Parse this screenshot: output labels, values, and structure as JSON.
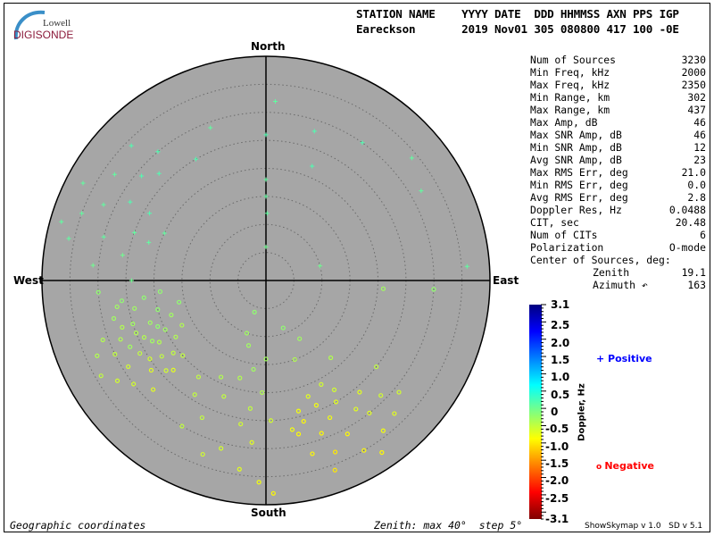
{
  "logo": {
    "line1": "Lowell",
    "line2": "DIGISONDE"
  },
  "header": {
    "row1": "STATION NAME    YYYY DATE  DDD HHMMSS AXN PPS IGP",
    "row2": "Eareckson       2019 Nov01 305 080800 417 100 -0E"
  },
  "stats": [
    {
      "label": "Num of Sources",
      "value": "3230"
    },
    {
      "label": "Min Freq, kHz",
      "value": "2000"
    },
    {
      "label": "Max Freq, kHz",
      "value": "2350"
    },
    {
      "label": "Min Range, km",
      "value": "302"
    },
    {
      "label": "Max Range, km",
      "value": "437"
    },
    {
      "label": "Max Amp, dB",
      "value": "46"
    },
    {
      "label": "Max SNR Amp, dB",
      "value": "46"
    },
    {
      "label": "Min SNR Amp, dB",
      "value": "12"
    },
    {
      "label": "Avg SNR Amp, dB",
      "value": "23"
    },
    {
      "label": "Max RMS Err, deg",
      "value": "21.0"
    },
    {
      "label": "Min RMS Err, deg",
      "value": "0.0"
    },
    {
      "label": "Avg RMS Err, deg",
      "value": "2.8"
    },
    {
      "label": "Doppler Res, Hz",
      "value": "0.0488"
    },
    {
      "label": "CIT, sec",
      "value": "20.48"
    },
    {
      "label": "Num of CITs",
      "value": "6"
    },
    {
      "label": "Polarization",
      "value": "O-mode"
    },
    {
      "label": "Center of Sources, deg:",
      "value": ""
    },
    {
      "label": "Zenith",
      "value": "19.1"
    },
    {
      "label": "Azimuth ↶",
      "value": "163"
    }
  ],
  "legend": {
    "positive": "Positive",
    "negative": "Negative",
    "positive_color": "#0000ff",
    "negative_color": "#ff0000"
  },
  "footer": {
    "left": "Geographic coordinates",
    "center": "Zenith: max 40°  step 5°",
    "right": "ShowSkymap v 1.0   SD v 5.1"
  },
  "chart_data": {
    "type": "scatter",
    "projection": "polar skymap (zenith angle radial, azimuth clockwise from North)",
    "directions": {
      "north": "North",
      "south": "South",
      "east": "East",
      "west": "West"
    },
    "zenith_max": 40,
    "zenith_step": 5,
    "background": "#a6a6a6",
    "colorbar": {
      "label": "Doppler, Hz",
      "range": [
        -3.1,
        3.1
      ],
      "colormap": "jet (positive blue, negative red)",
      "ticks": [
        "3.1",
        "2.5",
        "2.0",
        "1.5",
        "1.0",
        "0.5",
        "0",
        "-0.5",
        "-1.0",
        "-1.5",
        "-2.0",
        "-2.5",
        "-3.1"
      ]
    },
    "point_fields": [
      "zenith_deg",
      "azimuth_deg",
      "doppler_hz"
    ],
    "points": [
      [
        24,
        245,
        -0.3
      ],
      [
        22,
        250,
        -0.2
      ],
      [
        26,
        240,
        -0.4
      ],
      [
        20,
        255,
        -0.1
      ],
      [
        28,
        248,
        -0.3
      ],
      [
        25,
        236,
        -0.5
      ],
      [
        23,
        242,
        -0.2
      ],
      [
        27,
        252,
        -0.3
      ],
      [
        21,
        247,
        -0.1
      ],
      [
        30,
        244,
        -0.4
      ],
      [
        19,
        238,
        -0.3
      ],
      [
        24,
        258,
        -0.2
      ],
      [
        26,
        232,
        -0.6
      ],
      [
        22,
        262,
        -0.1
      ],
      [
        29,
        238,
        -0.5
      ],
      [
        18,
        250,
        -0.2
      ],
      [
        25,
        248,
        -0.3
      ],
      [
        23,
        234,
        -0.4
      ],
      [
        27,
        244,
        -0.2
      ],
      [
        31,
        250,
        -0.3
      ],
      [
        20,
        244,
        -0.2
      ],
      [
        24,
        228,
        -0.5
      ],
      [
        28,
        256,
        -0.2
      ],
      [
        21,
        232,
        -0.4
      ],
      [
        33,
        246,
        -0.3
      ],
      [
        17,
        242,
        -0.3
      ],
      [
        26,
        262,
        -0.1
      ],
      [
        30,
        232,
        -0.5
      ],
      [
        22,
        240,
        -0.3
      ],
      [
        25,
        252,
        -0.2
      ],
      [
        16,
        256,
        -0.1
      ],
      [
        34,
        240,
        -0.4
      ],
      [
        19,
        264,
        -0.1
      ],
      [
        23,
        226,
        -0.6
      ],
      [
        28,
        226,
        -0.6
      ],
      [
        32,
        236,
        -0.5
      ],
      [
        20,
        228,
        -0.4
      ],
      [
        27,
        260,
        -0.2
      ],
      [
        24,
        270,
        0.1
      ],
      [
        30,
        266,
        -0.1
      ],
      [
        27,
        155,
        -0.7
      ],
      [
        25,
        150,
        -0.6
      ],
      [
        29,
        160,
        -0.8
      ],
      [
        24,
        158,
        -0.7
      ],
      [
        31,
        152,
        -0.8
      ],
      [
        28,
        145,
        -0.6
      ],
      [
        26,
        165,
        -0.8
      ],
      [
        33,
        158,
        -0.9
      ],
      [
        23,
        148,
        -0.5
      ],
      [
        30,
        142,
        -0.6
      ],
      [
        27,
        170,
        -0.7
      ],
      [
        35,
        150,
        -0.8
      ],
      [
        22,
        160,
        -0.6
      ],
      [
        32,
        165,
        -0.8
      ],
      [
        29,
        135,
        -0.5
      ],
      [
        26,
        140,
        -0.6
      ],
      [
        34,
        142,
        -0.7
      ],
      [
        21,
        152,
        -0.5
      ],
      [
        36,
        160,
        -0.9
      ],
      [
        25,
        128,
        -0.4
      ],
      [
        31,
        130,
        -0.5
      ],
      [
        28,
        168,
        -0.8
      ],
      [
        33,
        136,
        -0.6
      ],
      [
        24,
        166,
        -0.7
      ],
      [
        37,
        146,
        -0.8
      ],
      [
        23,
        187,
        -0.4
      ],
      [
        20,
        182,
        -0.3
      ],
      [
        26,
        190,
        -0.5
      ],
      [
        18,
        195,
        -0.3
      ],
      [
        29,
        185,
        -0.6
      ],
      [
        25,
        178,
        -0.5
      ],
      [
        22,
        200,
        -0.4
      ],
      [
        31,
        195,
        -0.5
      ],
      [
        16,
        188,
        -0.2
      ],
      [
        27,
        205,
        -0.4
      ],
      [
        34,
        188,
        -0.6
      ],
      [
        19,
        205,
        -0.3
      ],
      [
        24,
        212,
        -0.4
      ],
      [
        30,
        210,
        -0.4
      ],
      [
        36,
        182,
        -0.7
      ],
      [
        14,
        180,
        -0.2
      ],
      [
        21,
        215,
        -0.4
      ],
      [
        33,
        200,
        -0.5
      ],
      [
        12,
        195,
        -0.2
      ],
      [
        38,
        178,
        -0.8
      ],
      [
        15,
        160,
        -0.3
      ],
      [
        18,
        140,
        -0.3
      ],
      [
        12,
        150,
        -0.2
      ],
      [
        10,
        200,
        -0.2
      ],
      [
        9,
        160,
        -0.1
      ],
      [
        30,
        285,
        0.2
      ],
      [
        32,
        295,
        0.2
      ],
      [
        28,
        300,
        0.3
      ],
      [
        25,
        290,
        0.2
      ],
      [
        35,
        290,
        0.2
      ],
      [
        29,
        310,
        0.3
      ],
      [
        33,
        305,
        0.2
      ],
      [
        26,
        280,
        0.1
      ],
      [
        36,
        282,
        0.2
      ],
      [
        31,
        275,
        0.1
      ],
      [
        24,
        300,
        0.3
      ],
      [
        38,
        286,
        0.2
      ],
      [
        27,
        315,
        0.3
      ],
      [
        22,
        288,
        0.2
      ],
      [
        34,
        315,
        0.3
      ],
      [
        20,
        295,
        0.2
      ],
      [
        30,
        320,
        0.3
      ],
      [
        37,
        298,
        0.2
      ],
      [
        26,
        0,
        0.3
      ],
      [
        18,
        0,
        0.2
      ],
      [
        15,
        0,
        0.2
      ],
      [
        6,
        0,
        0.1
      ],
      [
        12,
        1,
        0.2
      ],
      [
        28,
        18,
        0.3
      ],
      [
        22,
        22,
        0.3
      ],
      [
        30,
        35,
        0.3
      ],
      [
        32,
        3,
        0.2
      ],
      [
        25,
        330,
        0.3
      ],
      [
        29,
        340,
        0.2
      ],
      [
        30,
        93,
        -0.1
      ],
      [
        36,
        86,
        0.2
      ],
      [
        21,
        94,
        -0.2
      ],
      [
        32,
        60,
        0.2
      ],
      [
        34,
        50,
        0.2
      ],
      [
        10,
        75,
        0.1
      ],
      [
        6,
        200,
        -0.1
      ]
    ]
  }
}
